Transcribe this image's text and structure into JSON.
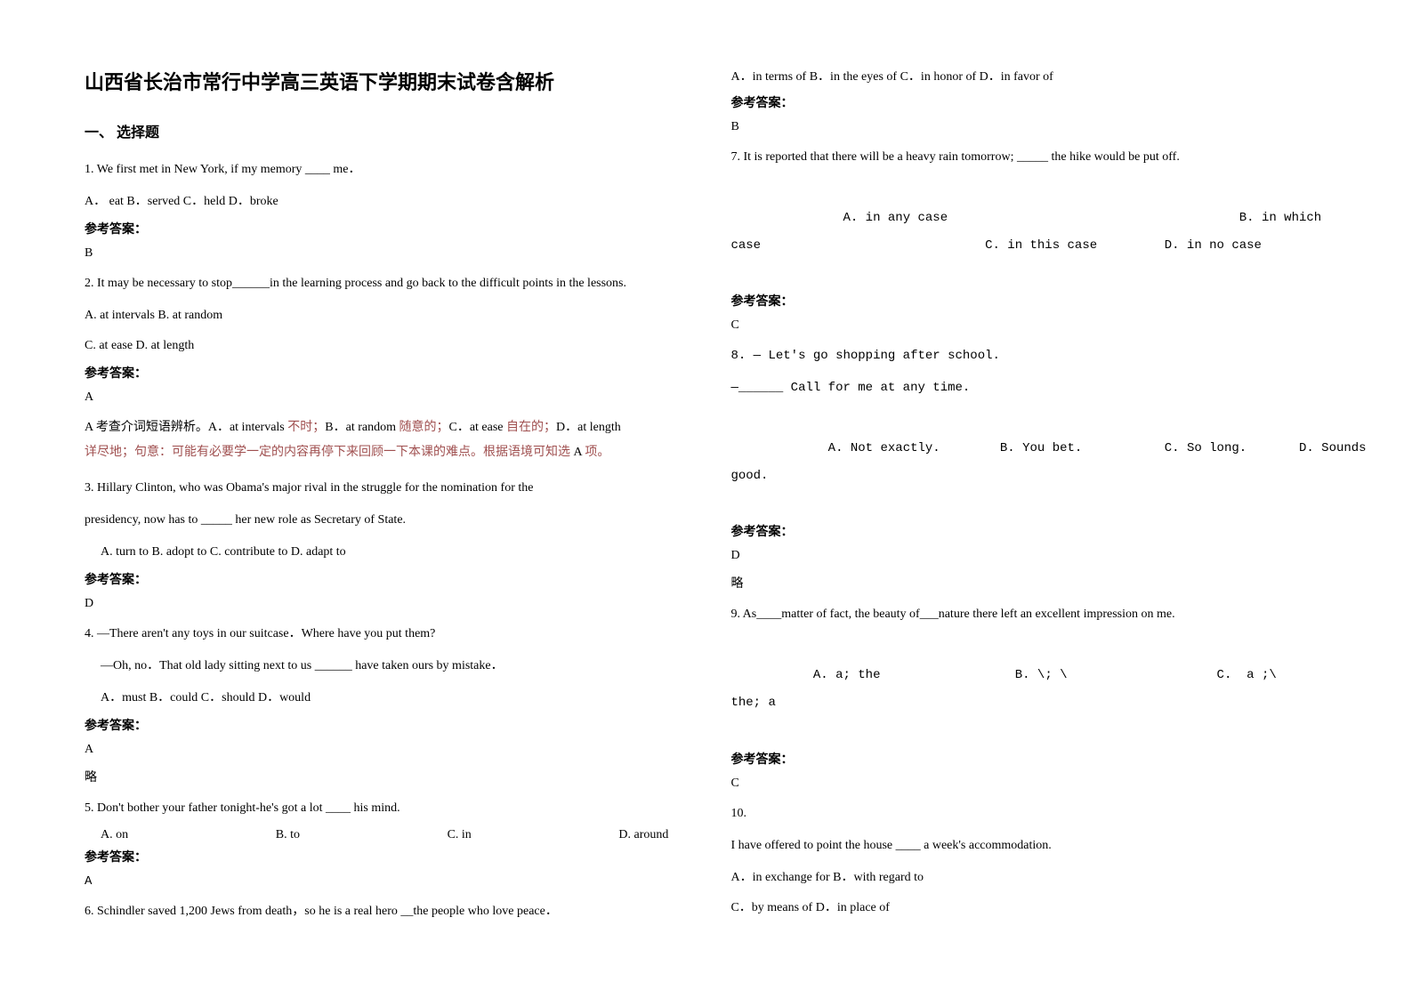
{
  "doc": {
    "title": "山西省长治市常行中学高三英语下学期期末试卷含解析",
    "section_heading": "一、 选择题",
    "answer_label": "参考答案：",
    "omit": "略",
    "colors": {
      "text": "#000000",
      "explanation_accent": "#a05050",
      "background": "#ffffff"
    },
    "font_sizes": {
      "title": 22,
      "section_heading": 16,
      "body": 14
    }
  },
  "q1": {
    "text": "1. We first met in New York, if my memory ____ me．",
    "options": "A．   eat    B．served   C．held    D．broke",
    "answer": "B"
  },
  "q2": {
    "text": "2. It may be necessary to stop______in the learning process and go back to the difficult points in the lessons.",
    "options_a": "A. at intervals    B. at random",
    "options_b": "C. at ease    D. at length",
    "answer": "A",
    "explanation_line1_a": "A 考查介词短语辨析。A．at intervals",
    "explanation_line1_b": " 不时；",
    "explanation_line1_c": "B．at random",
    "explanation_line1_d": " 随意的；",
    "explanation_line1_e": "C．at ease",
    "explanation_line1_f": " 自在的；",
    "explanation_line1_g": "D．at length",
    "explanation_line2_a": " 详尽地；句意：可能有必要学一定的内容再停下来回顾一下本课的难点。根据语境可知选 ",
    "explanation_line2_b": "A",
    "explanation_line2_c": " 项。"
  },
  "q3": {
    "text_line1": "3.  Hillary Clinton, who was Obama's major rival in the struggle for the nomination for the",
    "text_line2": "presidency, now has to _____ her new role as Secretary of State.",
    "options": "A. turn to       B. adopt to         C. contribute to    D. adapt to",
    "answer": "D"
  },
  "q4": {
    "text_line1": "4. —There aren't any toys in our suitcase．Where have you put them?",
    "text_line2": "—Oh, no．That old lady sitting next to us ______ have taken ours by mistake．",
    "options": "A．must         B．could     C．should      D．would",
    "answer": "A"
  },
  "q5": {
    "text": "5. Don't bother your father tonight-he's got a lot ____ his mind.",
    "opt_a": "A. on",
    "opt_b": "B. to",
    "opt_c": "C. in",
    "opt_d": "D. around",
    "answer": "A"
  },
  "q6": {
    "text": "6. Schindler saved 1,200 Jews from death，so he is a real hero __the people who love peace．",
    "options": "A．in terms of    B．in the eyes of   C．in honor of           D．in favor of",
    "answer": "B"
  },
  "q7": {
    "text": "7. It is reported that there will be a heavy rain tomorrow; _____ the hike would be put off.",
    "options_line1": "       A. in any case                                       B. in which",
    "options_line2": "case                              C. in this case         D. in no case",
    "answer": "C"
  },
  "q8": {
    "text_line1": "8. — Let's go shopping after school.",
    "text_line2": "—______ Call for me at any time.",
    "options_line1": "     A. Not exactly.        B. You bet.           C. So long.       D. Sounds",
    "options_line2": "good.",
    "answer": "D"
  },
  "q9": {
    "text": "9. As____matter of fact, the beauty of___nature there left an excellent impression on me.",
    "options_line1": "   A. a; the                  B. \\; \\                    C.  a ;\\                    D.",
    "options_line2": "the; a",
    "answer": "C"
  },
  "q10": {
    "number": "10.",
    "text": "I have offered to point the house ____ a week's accommodation.",
    "options_line1": "A．in exchange for   B．with regard to",
    "options_line2": "C．by means of     D．in place of"
  }
}
